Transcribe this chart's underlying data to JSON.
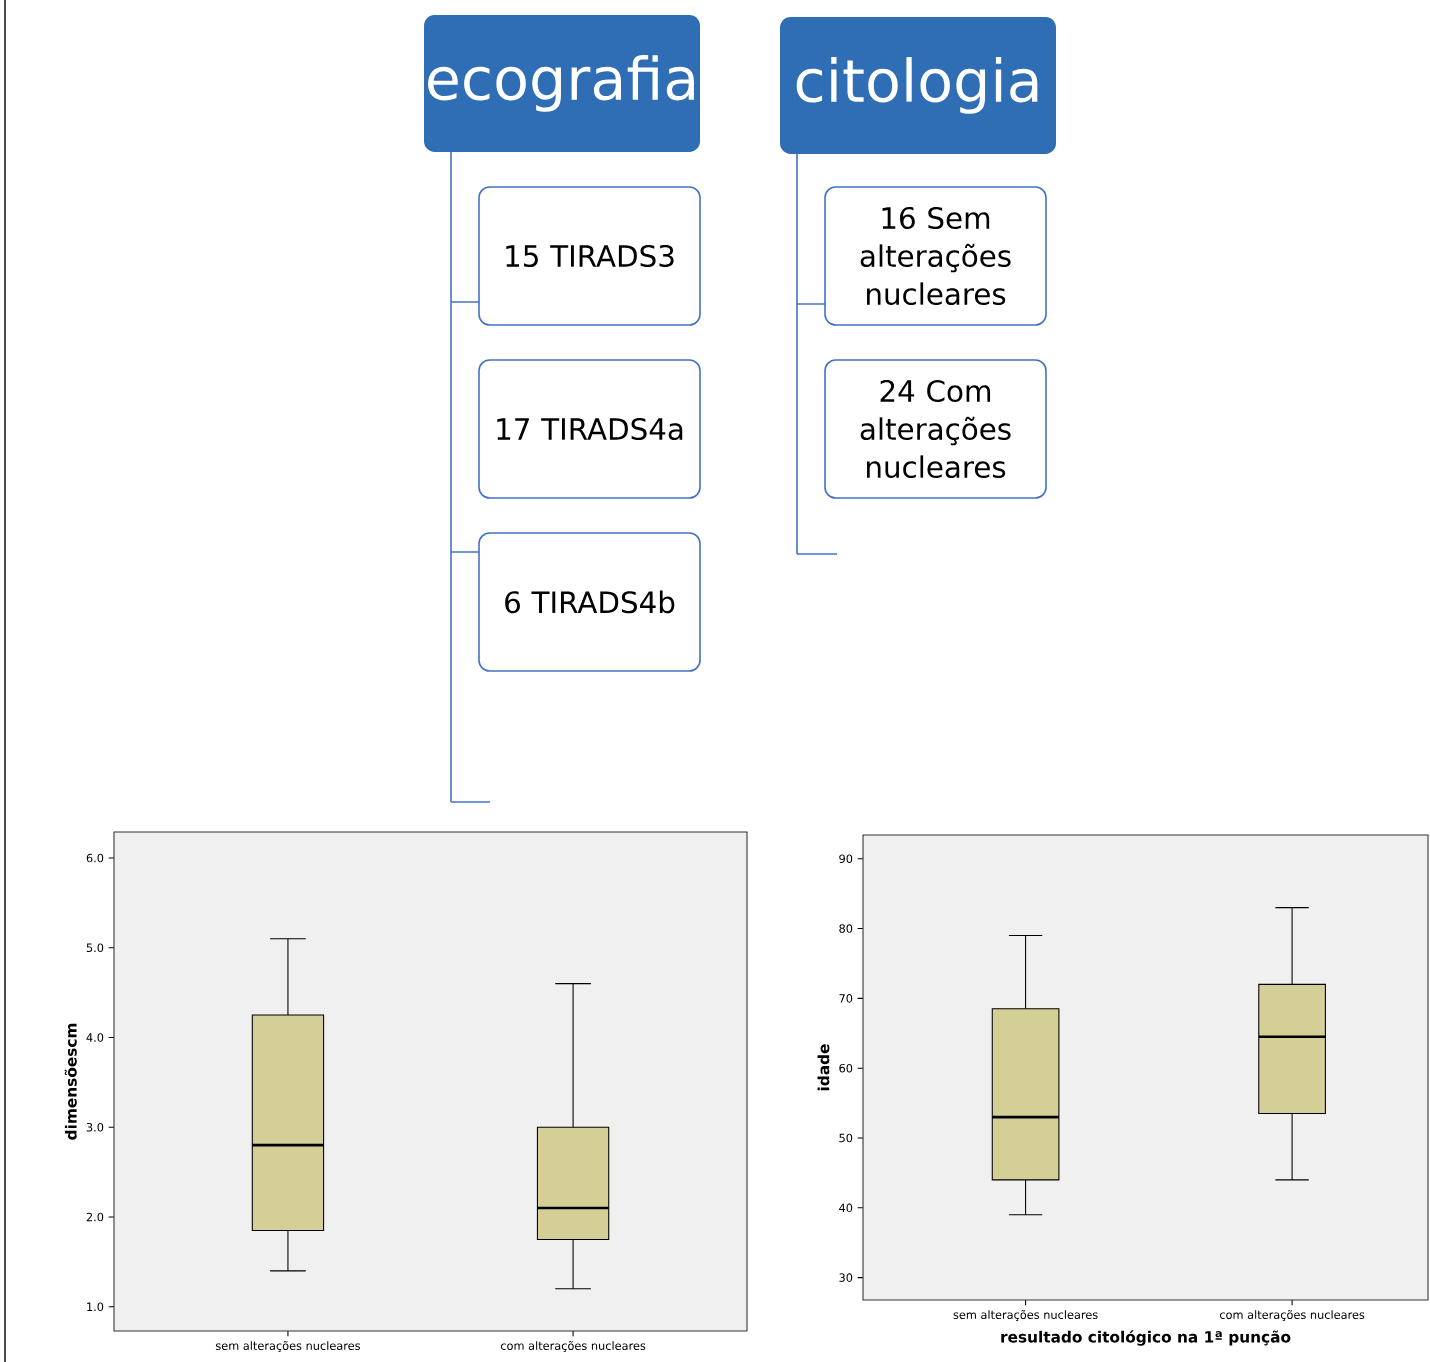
{
  "chart_data": [
    {
      "type": "other",
      "title": "ecografia",
      "annotations": [
        "15 TIRADS3",
        "17 TIRADS4a",
        "6 TIRADS4b"
      ]
    },
    {
      "type": "other",
      "title": "citologia",
      "annotations": [
        "16  Sem alterações nucleares",
        "24 Com alterações nucleares"
      ]
    },
    {
      "type": "box",
      "categories": [
        "sem alterações nucleares",
        "com alterações nucleares"
      ],
      "ylabel": "dimensõescm",
      "color": "#d3cf97",
      "boxes": [
        {
          "low": 1.4,
          "q1": 1.85,
          "median": 2.8,
          "q3": 4.25,
          "high": 5.1
        },
        {
          "low": 1.2,
          "q1": 1.75,
          "median": 2.1,
          "q3": 3.0,
          "high": 4.6
        }
      ],
      "ylim": [
        0.73,
        6.29
      ],
      "yticks": [
        {
          "value": 1,
          "label": "1.0"
        },
        {
          "value": 2,
          "label": "2.0"
        },
        {
          "value": 3,
          "label": "3.0"
        },
        {
          "value": 4,
          "label": "4.0"
        },
        {
          "value": 5,
          "label": "5.0"
        },
        {
          "value": 6,
          "label": "6.0"
        }
      ]
    },
    {
      "type": "box",
      "categories": [
        "sem alterações nucleares",
        "com alterações nucleares"
      ],
      "ylabel": "idade",
      "xlabel": "resultado citológico na 1ª punção",
      "color": "#d3cf97",
      "boxes": [
        {
          "low": 39,
          "q1": 44,
          "median": 53,
          "q3": 68.5,
          "high": 79
        },
        {
          "low": 44,
          "q1": 53.5,
          "median": 64.5,
          "q3": 72,
          "high": 83
        }
      ],
      "ylim": [
        26.8,
        93.4
      ],
      "yticks": [
        30,
        40,
        50,
        60,
        70,
        80,
        90
      ]
    }
  ]
}
